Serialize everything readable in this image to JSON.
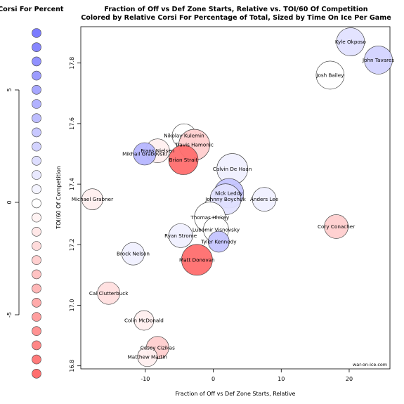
{
  "chart_data": {
    "type": "scatter",
    "title": "Fraction of Off vs Def Zone Starts, Relative vs. TOI/60 Of Competition",
    "subtitle": "Colored by Relative Corsi For Percentage of Total, Sized by Time On Ice Per Game",
    "xlabel": "Fraction of Off vs Def Zone Starts, Relative",
    "ylabel": "TOI/60 Of Competition",
    "watermark": "war-on-ice.com",
    "legend_title": "Relative Corsi For Percent",
    "legend_ticks": [
      "5",
      "0",
      "-5"
    ],
    "x_ticks": [
      "-10",
      "0",
      "10",
      "20"
    ],
    "y_ticks": [
      "16.8",
      "17.0",
      "17.2",
      "17.4",
      "17.6",
      "17.8"
    ],
    "xlim": [
      -19.5,
      26
    ],
    "ylim": [
      16.79,
      17.92
    ],
    "points": [
      {
        "label": "Kyle Okposo",
        "x": 20.2,
        "y": 17.87,
        "size": 20,
        "color": 2
      },
      {
        "label": "John Tavares",
        "x": 24.3,
        "y": 17.81,
        "size": 20,
        "color": 3
      },
      {
        "label": "Josh Bailey",
        "x": 17.2,
        "y": 17.76,
        "size": 20,
        "color": 0
      },
      {
        "label": "Nikolay Kulemin",
        "x": -4.3,
        "y": 17.56,
        "size": 17,
        "color": 0
      },
      {
        "label": "Travis Hamonic",
        "x": -2.8,
        "y": 17.53,
        "size": 22,
        "color": -3
      },
      {
        "label": "Frans Nielsen",
        "x": -8.2,
        "y": 17.51,
        "size": 17,
        "color": -1
      },
      {
        "label": "Mikhail Grabovski",
        "x": -10.1,
        "y": 17.5,
        "size": 16,
        "color": 5
      },
      {
        "label": "Brian Strait",
        "x": -4.4,
        "y": 17.48,
        "size": 21,
        "color": -9
      },
      {
        "label": "Calvin De Haan",
        "x": 2.8,
        "y": 17.45,
        "size": 22,
        "color": 1
      },
      {
        "label": "Michael Grabner",
        "x": -17.8,
        "y": 17.35,
        "size": 15,
        "color": -1
      },
      {
        "label": "Nick Leddy",
        "x": 2.3,
        "y": 17.37,
        "size": 21,
        "color": 4
      },
      {
        "label": "Johnny Boychuk",
        "x": 1.8,
        "y": 17.35,
        "size": 22,
        "color": 2
      },
      {
        "label": "Anders Lee",
        "x": 7.5,
        "y": 17.35,
        "size": 17,
        "color": 1
      },
      {
        "label": "Thomas Hickey",
        "x": -0.5,
        "y": 17.29,
        "size": 22,
        "color": 0
      },
      {
        "label": "Cory Conacher",
        "x": 18.1,
        "y": 17.26,
        "size": 17,
        "color": -3
      },
      {
        "label": "Lubomir Visnovsky",
        "x": 0.4,
        "y": 17.25,
        "size": 18,
        "color": 0
      },
      {
        "label": "Ryan Strome",
        "x": -4.8,
        "y": 17.23,
        "size": 17,
        "color": 1
      },
      {
        "label": "Tyler Kennedy",
        "x": 0.8,
        "y": 17.21,
        "size": 15,
        "color": 4
      },
      {
        "label": "Brock Nelson",
        "x": -11.8,
        "y": 17.17,
        "size": 16,
        "color": 1
      },
      {
        "label": "Matt Donovan",
        "x": -2.4,
        "y": 17.15,
        "size": 22,
        "color": -9
      },
      {
        "label": "Cal Clutterbuck",
        "x": -15.4,
        "y": 17.04,
        "size": 16,
        "color": -2
      },
      {
        "label": "Colin McDonald",
        "x": -10.2,
        "y": 16.95,
        "size": 14,
        "color": -1
      },
      {
        "label": "Casey Cizikas",
        "x": -8.2,
        "y": 16.86,
        "size": 16,
        "color": -3
      },
      {
        "label": "Matthew Martin",
        "x": -9.7,
        "y": 16.83,
        "size": 14,
        "color": -1
      }
    ]
  }
}
